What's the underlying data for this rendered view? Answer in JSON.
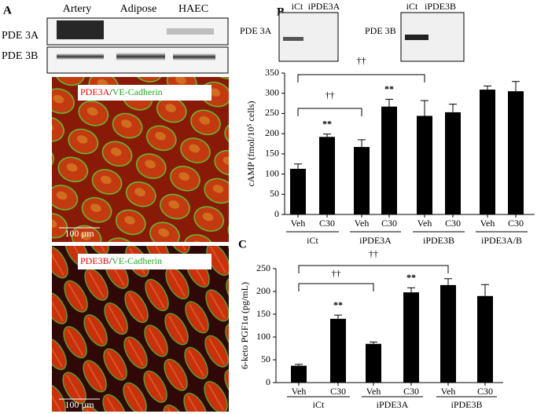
{
  "panels": {
    "a": "A",
    "b": "B",
    "c": "C"
  },
  "blot_a": {
    "columns": [
      "Artery",
      "Adipose",
      "HAEC"
    ],
    "rows": [
      "PDE 3A",
      "PDE 3B"
    ]
  },
  "micro": [
    {
      "parts": [
        "PDE3A",
        "/",
        "VE-Cadherin"
      ],
      "scale": "100 µm"
    },
    {
      "parts": [
        "PDE3B",
        "/",
        "VE-Cadherin"
      ],
      "scale": "100 µm"
    }
  ],
  "blot_b": [
    {
      "row": "PDE 3A",
      "columns": [
        "iCt",
        "iPDE3A"
      ]
    },
    {
      "row": "PDE 3B",
      "columns": [
        "iCt",
        "iPDE3B"
      ]
    }
  ],
  "chart_data": [
    {
      "type": "bar",
      "ylabel": "cAMP (fmol/10⁵ cells)",
      "categories": [
        "Veh",
        "C30",
        "Veh",
        "C30",
        "Veh",
        "C30",
        "Veh",
        "C30"
      ],
      "groups": [
        "iCt",
        "iPDE3A",
        "iPDE3B",
        "iPDE3A/B"
      ],
      "values": [
        113,
        192,
        167,
        267,
        244,
        253,
        309,
        305
      ],
      "errors": [
        12,
        7,
        18,
        18,
        38,
        20,
        9,
        24
      ],
      "color": "#000000",
      "ylim": [
        0,
        350
      ],
      "yticks": [
        0,
        50,
        100,
        150,
        200,
        250,
        300,
        350
      ],
      "annotations": [
        "**",
        "**",
        "††",
        "††"
      ]
    },
    {
      "type": "bar",
      "ylabel": "6-keto PGF1α (pg/mL)",
      "categories": [
        "Veh",
        "C30",
        "Veh",
        "C30",
        "Veh",
        "C30"
      ],
      "groups": [
        "iCt",
        "iPDE3A",
        "iPDE3B"
      ],
      "values": [
        37,
        140,
        85,
        198,
        214,
        190
      ],
      "errors": [
        3,
        8,
        4,
        10,
        14,
        25
      ],
      "color": "#000000",
      "ylim": [
        0,
        250
      ],
      "yticks": [
        0,
        50,
        100,
        150,
        200,
        250
      ],
      "annotations": [
        "**",
        "**",
        "††",
        "††"
      ]
    }
  ]
}
